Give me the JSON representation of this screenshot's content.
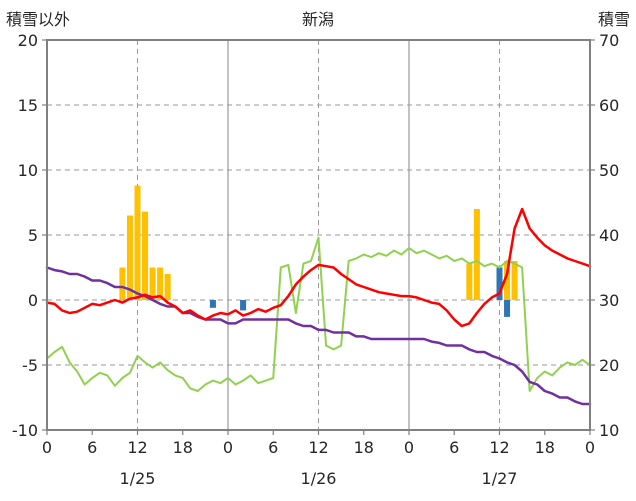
{
  "header": {
    "left_axis_title": "積雪以外",
    "title": "新潟",
    "right_axis_title": "積雪"
  },
  "colors": {
    "bar_orange": "#FFC000",
    "bar_blue": "#2E75B6",
    "line_red": "#FF0000",
    "line_purple": "#7030A0",
    "line_green": "#92D050",
    "grid": "#9A9A9A",
    "frame": "#808080",
    "text": "#262626"
  },
  "chart_data": {
    "type": "composite",
    "title": "新潟",
    "x_max": 72,
    "x_tick_interval": 6,
    "x_tick_labels": [
      "0",
      "6",
      "12",
      "18",
      "0",
      "6",
      "12",
      "18",
      "0",
      "6",
      "12",
      "18",
      "0"
    ],
    "date_labels": [
      {
        "label": "1/25",
        "hour": 12
      },
      {
        "label": "1/26",
        "hour": 36
      },
      {
        "label": "1/27",
        "hour": 60
      }
    ],
    "left_axis": {
      "title": "積雪以外",
      "min": -10,
      "max": 20,
      "ticks": [
        20,
        15,
        10,
        5,
        0,
        -5,
        -10
      ]
    },
    "right_axis": {
      "title": "積雪",
      "min": 10,
      "max": 70,
      "ticks": [
        70,
        60,
        50,
        40,
        30,
        20,
        10
      ]
    },
    "vgrid_dashed": [
      12,
      36,
      60
    ],
    "vgrid_solid": [
      24,
      48
    ],
    "grid": true,
    "legend": "none",
    "series": [
      {
        "name": "bar-orange",
        "type": "bar",
        "color": "#FFC000",
        "points": [
          [
            10,
            2.5
          ],
          [
            11,
            6.5
          ],
          [
            12,
            8.8
          ],
          [
            13,
            6.8
          ],
          [
            14,
            2.5
          ],
          [
            15,
            2.5
          ],
          [
            16,
            2.0
          ],
          [
            56,
            2.8
          ],
          [
            57,
            7.0
          ],
          [
            61,
            3.0
          ],
          [
            62,
            3.0
          ]
        ]
      },
      {
        "name": "bar-blue",
        "type": "bar",
        "color": "#2E75B6",
        "points": [
          [
            22,
            -0.6
          ],
          [
            26,
            -0.8
          ],
          [
            60,
            2.5
          ],
          [
            61,
            -1.3
          ]
        ]
      },
      {
        "name": "line-green",
        "type": "line",
        "color": "#92D050",
        "width": 2,
        "values": [
          -4.5,
          -4.0,
          -3.6,
          -4.8,
          -5.5,
          -6.5,
          -6.0,
          -5.6,
          -5.8,
          -6.6,
          -6.0,
          -5.6,
          -4.3,
          -4.8,
          -5.2,
          -4.8,
          -5.4,
          -5.8,
          -6.0,
          -6.8,
          -7.0,
          -6.5,
          -6.2,
          -6.4,
          -6.0,
          -6.5,
          -6.2,
          -5.8,
          -6.4,
          -6.2,
          -6.0,
          2.5,
          2.7,
          -1.0,
          2.8,
          3.0,
          4.8,
          -3.5,
          -3.8,
          -3.5,
          3.0,
          3.2,
          3.5,
          3.3,
          3.6,
          3.4,
          3.8,
          3.5,
          4.0,
          3.6,
          3.8,
          3.5,
          3.2,
          3.4,
          3.0,
          3.2,
          2.8,
          3.0,
          2.6,
          2.8,
          2.5,
          3.0,
          2.8,
          2.5,
          -7.0,
          -6.0,
          -5.5,
          -5.8,
          -5.2,
          -4.8,
          -5.0,
          -4.6,
          -5.0
        ]
      },
      {
        "name": "line-purple",
        "type": "line",
        "color": "#7030A0",
        "width": 2.5,
        "values": [
          2.5,
          2.3,
          2.2,
          2.0,
          2.0,
          1.8,
          1.5,
          1.5,
          1.3,
          1.0,
          1.0,
          0.8,
          0.5,
          0.3,
          0.0,
          -0.3,
          -0.5,
          -0.5,
          -1.0,
          -1.0,
          -1.3,
          -1.5,
          -1.5,
          -1.5,
          -1.8,
          -1.8,
          -1.5,
          -1.5,
          -1.5,
          -1.5,
          -1.5,
          -1.5,
          -1.5,
          -1.8,
          -2.0,
          -2.0,
          -2.3,
          -2.3,
          -2.5,
          -2.5,
          -2.5,
          -2.8,
          -2.8,
          -3.0,
          -3.0,
          -3.0,
          -3.0,
          -3.0,
          -3.0,
          -3.0,
          -3.0,
          -3.2,
          -3.3,
          -3.5,
          -3.5,
          -3.5,
          -3.8,
          -4.0,
          -4.0,
          -4.3,
          -4.5,
          -4.8,
          -5.0,
          -5.5,
          -6.3,
          -6.5,
          -7.0,
          -7.2,
          -7.5,
          -7.5,
          -7.8,
          -8.0,
          -8.0
        ]
      },
      {
        "name": "line-red",
        "type": "line",
        "color": "#FF0000",
        "width": 2.5,
        "values": [
          -0.2,
          -0.3,
          -0.8,
          -1.0,
          -0.9,
          -0.6,
          -0.3,
          -0.4,
          -0.2,
          0.0,
          -0.2,
          0.1,
          0.2,
          0.4,
          0.2,
          0.3,
          -0.2,
          -0.5,
          -1.0,
          -0.8,
          -1.2,
          -1.5,
          -1.2,
          -1.0,
          -1.1,
          -0.8,
          -1.2,
          -1.0,
          -0.7,
          -0.9,
          -0.6,
          -0.4,
          0.3,
          1.2,
          1.8,
          2.3,
          2.7,
          2.6,
          2.5,
          2.0,
          1.6,
          1.2,
          1.0,
          0.8,
          0.6,
          0.5,
          0.4,
          0.3,
          0.3,
          0.2,
          0.0,
          -0.2,
          -0.3,
          -0.8,
          -1.5,
          -2.0,
          -1.8,
          -1.0,
          -0.3,
          0.2,
          0.5,
          2.0,
          5.5,
          7.0,
          5.5,
          4.8,
          4.2,
          3.8,
          3.5,
          3.2,
          3.0,
          2.8,
          2.6
        ]
      }
    ]
  }
}
